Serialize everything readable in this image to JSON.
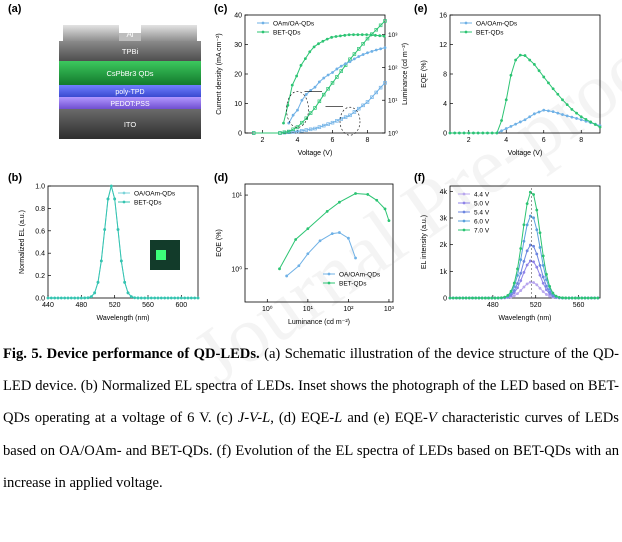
{
  "panel_labels": [
    "(a)",
    "(b)",
    "(c)",
    "(d)",
    "(e)",
    "(f)"
  ],
  "colors": {
    "oa": "#6fb1e6",
    "bet": "#2cc473",
    "el_bet": "#35c4b0",
    "el_oa": "#7ad3d8"
  },
  "device_layers": [
    {
      "label": "Al",
      "color": "#a9a9a9"
    },
    {
      "label": "TPBi",
      "color": "#6b6b6b"
    },
    {
      "label": "CsPbBr3 QDs",
      "color": "#24a341"
    },
    {
      "label": "poly-TPD",
      "color": "#5665e8"
    },
    {
      "label": "PEDOT:PSS",
      "color": "#8c6fe0"
    },
    {
      "label": "ITO",
      "color": "#505050"
    }
  ],
  "chart_data": [
    {
      "panel": "b",
      "type": "line",
      "xlabel": "Wavelength (nm)",
      "ylabel": "Normalized EL (a.u.)",
      "xlim": [
        440,
        620
      ],
      "ylim": [
        0,
        1.0
      ],
      "xticks": [
        "440",
        "480",
        "520",
        "560",
        "600"
      ],
      "yticks": [
        "0.0",
        "0.2",
        "0.4",
        "0.6",
        "0.8",
        "1.0"
      ],
      "legend": [
        "OA/OAm-QDs",
        "BET-QDs"
      ],
      "inset": "photograph of BET-QD LED",
      "series": [
        {
          "name": "OA/OAm-QDs",
          "peak": 516,
          "fwhm": 19
        },
        {
          "name": "BET-QDs",
          "peak": 516,
          "fwhm": 19
        }
      ]
    },
    {
      "panel": "c",
      "type": "line",
      "xlabel": "Voltage (V)",
      "ylabel": "Current density (mA cm⁻²)",
      "ylabel_right": "Luminance (cd m⁻²)",
      "xlim": [
        1,
        9
      ],
      "ylim": [
        0,
        40
      ],
      "xticks": [
        "2",
        "4",
        "6",
        "8"
      ],
      "yticks": [
        "0",
        "10",
        "20",
        "30",
        "40"
      ],
      "yticks_right": [
        "10⁰",
        "10¹",
        "10²",
        "10³"
      ],
      "legend": [
        "OAm/OA-QDs",
        "BET-QDs"
      ],
      "series": [
        {
          "name": "OA J",
          "x": [
            3,
            4,
            5,
            6,
            7,
            8,
            9
          ],
          "values": [
            0,
            0.5,
            1.5,
            3.5,
            6,
            10.5,
            17
          ]
        },
        {
          "name": "BET J",
          "x": [
            3,
            3.5,
            4,
            4.5,
            5,
            5.5,
            6,
            7,
            8,
            9
          ],
          "values": [
            0,
            0.5,
            2,
            5,
            8.5,
            13,
            17,
            25,
            32,
            38
          ]
        },
        {
          "name": "OA L",
          "x": [
            3.5,
            4,
            5,
            6,
            7,
            8,
            9
          ],
          "values": [
            2,
            5,
            25,
            70,
            150,
            280,
            400
          ]
        },
        {
          "name": "BET L",
          "x": [
            3.2,
            3.5,
            4,
            4.5,
            5,
            6,
            7,
            8,
            9
          ],
          "values": [
            2,
            8,
            60,
            200,
            450,
            850,
            1000,
            1000,
            900
          ]
        }
      ]
    },
    {
      "panel": "d",
      "type": "line",
      "xlabel": "Luminance (cd m⁻²)",
      "ylabel": "EQE (%)",
      "xscale": "log",
      "yscale": "log",
      "xticks": [
        "10⁰",
        "10¹",
        "10²",
        "10³"
      ],
      "yticks": [
        "10⁰",
        "10¹"
      ],
      "legend": [
        "OA/OAm-QDs",
        "BET-QDs"
      ],
      "series": [
        {
          "name": "OA/OAm-QDs",
          "x": [
            3,
            6,
            10,
            20,
            40,
            60,
            100,
            150
          ],
          "values": [
            0.8,
            1.1,
            1.6,
            2.4,
            3.0,
            3.1,
            2.6,
            1.4
          ]
        },
        {
          "name": "BET-QDs",
          "x": [
            2,
            5,
            10,
            30,
            60,
            150,
            300,
            500,
            800,
            1000
          ],
          "values": [
            1.0,
            2.5,
            3.5,
            6,
            8,
            10.5,
            10.2,
            8.5,
            6.5,
            4.5
          ]
        }
      ]
    },
    {
      "panel": "e",
      "type": "line",
      "xlabel": "Voltage (V)",
      "ylabel": "EQE (%)",
      "xlim": [
        1,
        9
      ],
      "ylim": [
        0,
        16
      ],
      "xticks": [
        "2",
        "4",
        "6",
        "8"
      ],
      "yticks": [
        "0",
        "4",
        "8",
        "12",
        "16"
      ],
      "legend": [
        "OA/OAm-QDs",
        "BET-QDs"
      ],
      "series": [
        {
          "name": "OA/OAm-QDs",
          "x": [
            1,
            3.5,
            4,
            4.5,
            5,
            5.5,
            6,
            6.5,
            7,
            8,
            9
          ],
          "values": [
            0,
            0,
            0.6,
            1.2,
            1.8,
            2.6,
            3.1,
            2.9,
            2.5,
            1.8,
            1.0
          ]
        },
        {
          "name": "BET-QDs",
          "x": [
            1,
            3.6,
            4.0,
            4.3,
            4.6,
            5.0,
            5.5,
            6.0,
            6.5,
            7.0,
            7.5,
            8.0,
            9.0
          ],
          "values": [
            0,
            0,
            4.5,
            8.5,
            10.6,
            10.5,
            9.3,
            7.6,
            6.0,
            4.5,
            3.2,
            2.2,
            0.8
          ]
        }
      ]
    },
    {
      "panel": "f",
      "type": "line",
      "xlabel": "Wavelength (nm)",
      "ylabel": "EL intensity (a.u.)",
      "xlim": [
        440,
        580
      ],
      "ylim": [
        0,
        4200
      ],
      "xticks": [
        "480",
        "520",
        "560"
      ],
      "yticks": [
        "0",
        "1k",
        "2k",
        "3k",
        "4k"
      ],
      "legend": [
        "4.4 V",
        "5.0 V",
        "5.4 V",
        "6.0 V",
        "7.0 V"
      ],
      "series": [
        {
          "name": "4.4 V",
          "peak": 516,
          "values": [
            600
          ]
        },
        {
          "name": "5.0 V",
          "peak": 516,
          "values": [
            1400
          ]
        },
        {
          "name": "5.4 V",
          "peak": 516,
          "values": [
            2000
          ]
        },
        {
          "name": "6.0 V",
          "peak": 516,
          "values": [
            3100
          ]
        },
        {
          "name": "7.0 V",
          "peak": 516,
          "values": [
            4000
          ]
        }
      ]
    }
  ],
  "caption": {
    "title": "Fig. 5. Device performance of QD-LEDs.",
    "s1": " (a) Schematic illustration of the device structure of the QD-LED device. (b) Normalized EL spectra of LEDs. Inset shows the photograph of the LED based on BET-QDs operating at a voltage of 6 V. (c) ",
    "jvl": "J-V-L",
    "s2": ", (d) EQE-",
    "l": "L",
    "s3": " and (e) EQE-",
    "v": "V",
    "s4": " characteristic curves of LEDs based on OA/OAm- and BET-QDs. (f) Evolution of the EL spectra of LEDs based on BET-QDs with an increase in applied voltage."
  }
}
